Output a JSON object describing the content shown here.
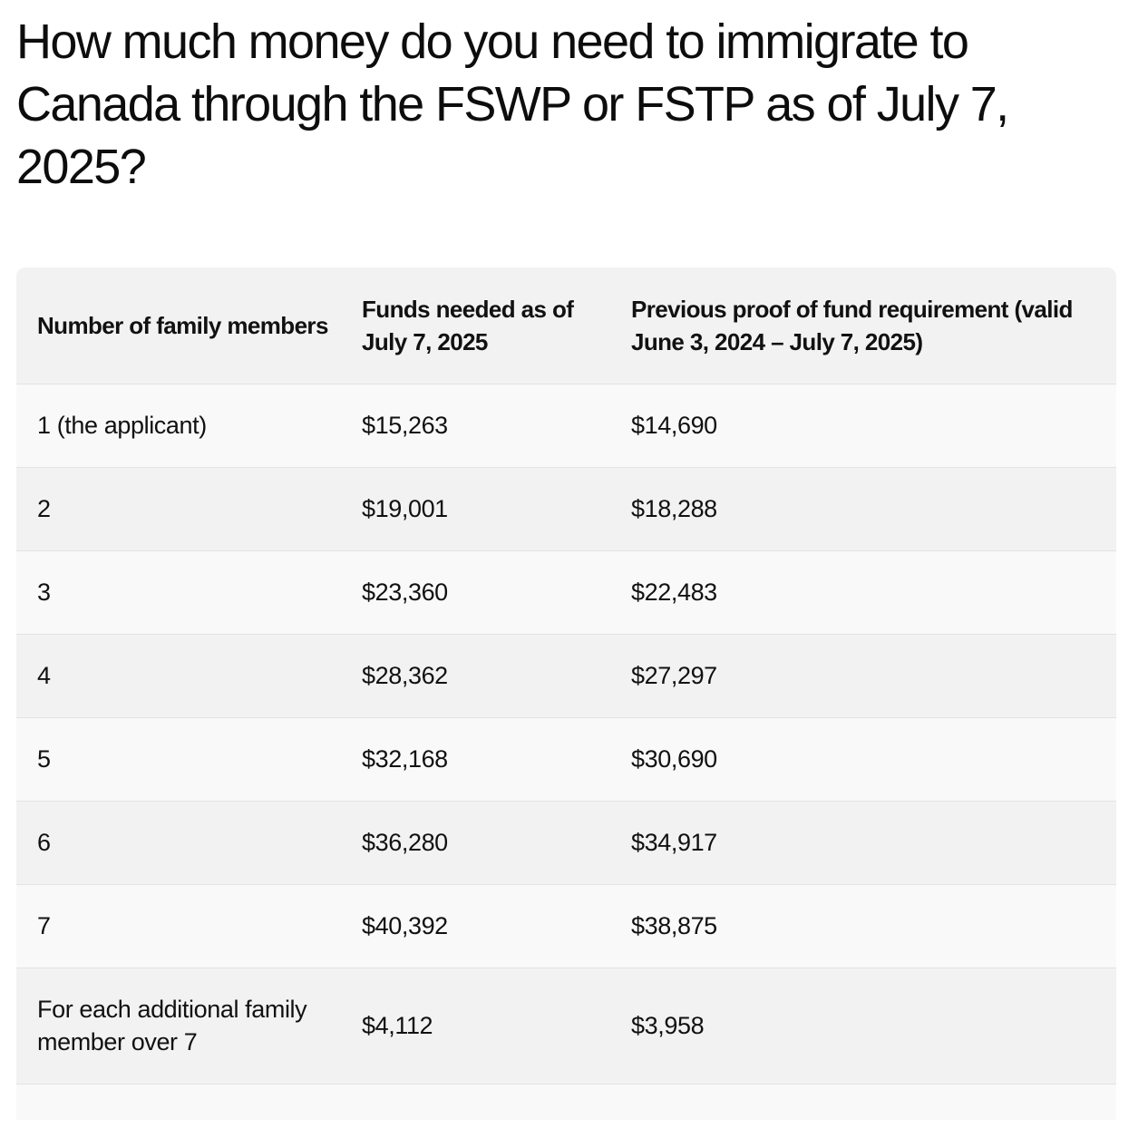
{
  "article": {
    "title": "How much money do you need to immigrate to Canada through the FSWP or FSTP as of July 7, 2025?"
  },
  "table": {
    "headers": [
      "Number of family members",
      "Funds needed as of July 7, 2025",
      "Previous proof of fund requirement (valid June 3, 2024 – July 7, 2025)"
    ],
    "rows": [
      {
        "members": "1 (the applicant)",
        "funds": "$15,263",
        "previous": "$14,690"
      },
      {
        "members": "2",
        "funds": "$19,001",
        "previous": "$18,288"
      },
      {
        "members": "3",
        "funds": "$23,360",
        "previous": "$22,483"
      },
      {
        "members": "4",
        "funds": "$28,362",
        "previous": "$27,297"
      },
      {
        "members": "5",
        "funds": "$32,168",
        "previous": "$30,690"
      },
      {
        "members": "6",
        "funds": "$36,280",
        "previous": "$34,917"
      },
      {
        "members": "7",
        "funds": "$40,392",
        "previous": "$38,875"
      },
      {
        "members": "For each additional family member over 7",
        "funds": "$4,112",
        "previous": "$3,958"
      }
    ]
  }
}
